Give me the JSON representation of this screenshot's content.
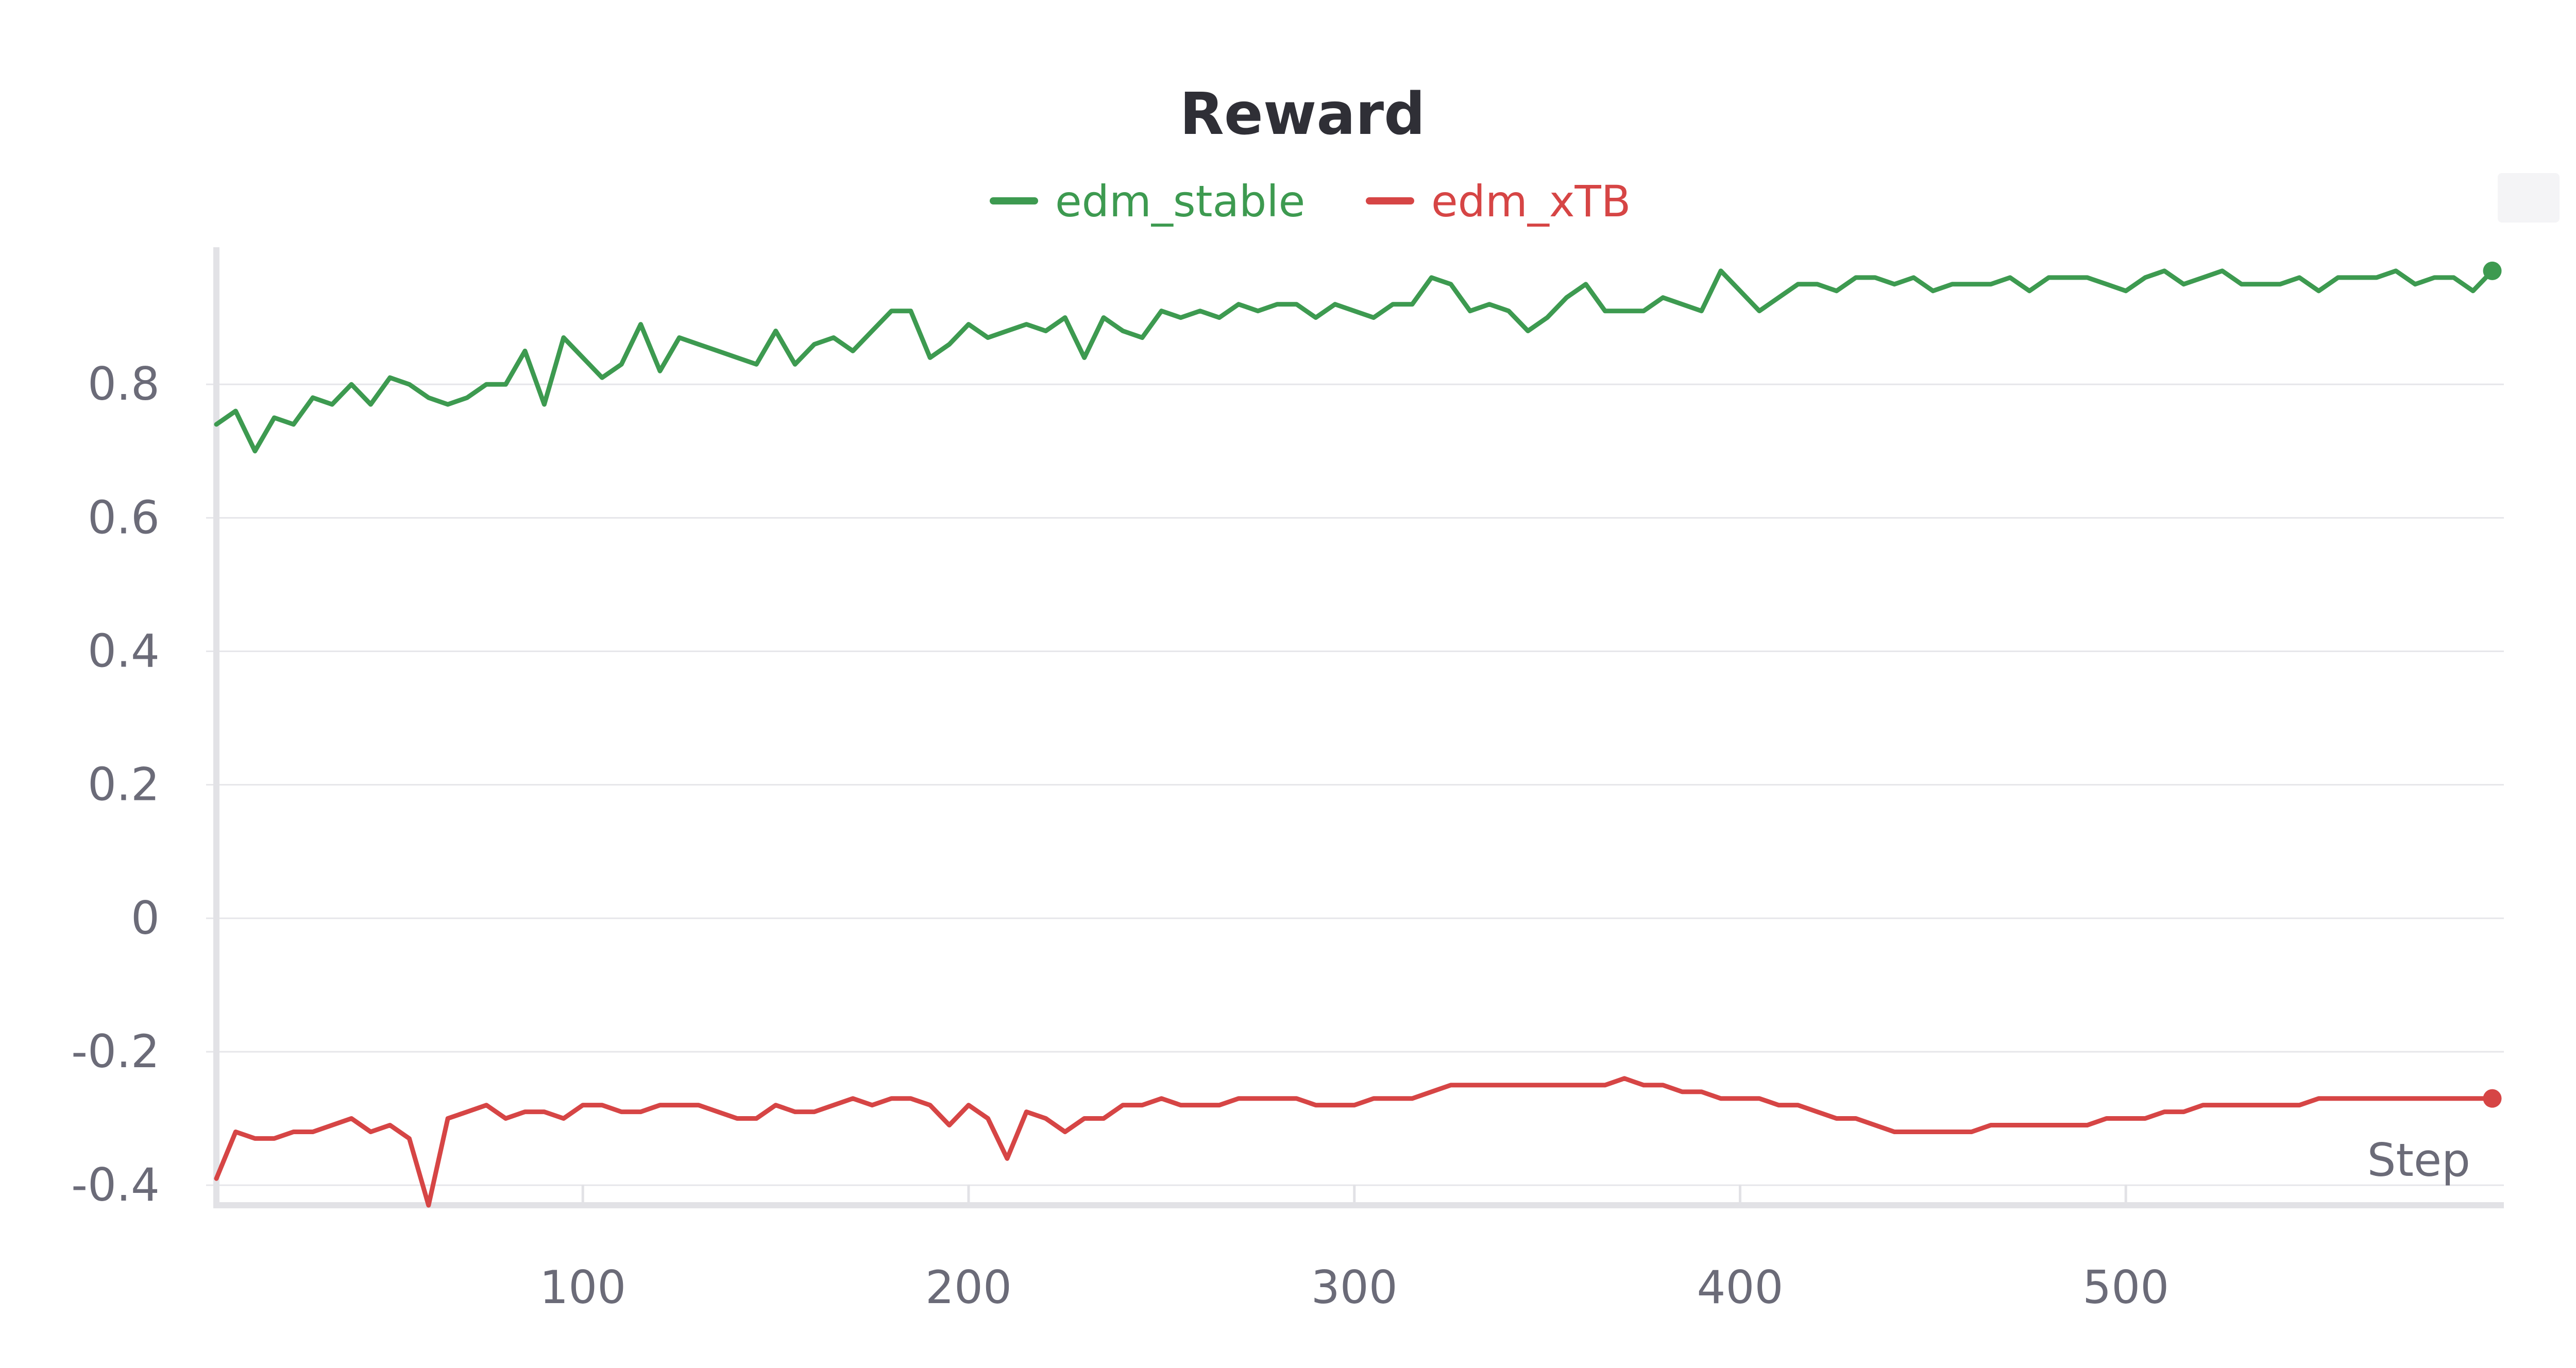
{
  "chart_data": {
    "type": "line",
    "title": "Reward",
    "xlabel": "Step",
    "ylabel": "",
    "xlim": [
      5,
      598
    ],
    "ylim": [
      -0.43,
      0.99
    ],
    "x_ticks": [
      100,
      200,
      300,
      400,
      500
    ],
    "x_tick_labels": [
      "100",
      "200",
      "300",
      "400",
      "500"
    ],
    "y_ticks": [
      0.8,
      0.6,
      0.4,
      0.2,
      0,
      -0.2,
      -0.4
    ],
    "y_tick_labels": [
      "0.8",
      "0.6",
      "0.4",
      "0.2",
      "0",
      "-0.2",
      "-0.4"
    ],
    "grid": true,
    "legend_position": "top-center",
    "x": [
      5,
      10,
      15,
      20,
      25,
      30,
      35,
      40,
      45,
      50,
      55,
      60,
      65,
      70,
      75,
      80,
      85,
      90,
      95,
      100,
      105,
      110,
      115,
      120,
      125,
      130,
      135,
      140,
      145,
      150,
      155,
      160,
      165,
      170,
      175,
      180,
      185,
      190,
      195,
      200,
      205,
      210,
      215,
      220,
      225,
      230,
      235,
      240,
      245,
      250,
      255,
      260,
      265,
      270,
      275,
      280,
      285,
      290,
      295,
      300,
      305,
      310,
      315,
      320,
      325,
      330,
      335,
      340,
      345,
      350,
      355,
      360,
      365,
      370,
      375,
      380,
      385,
      390,
      395,
      400,
      405,
      410,
      415,
      420,
      425,
      430,
      435,
      440,
      445,
      450,
      455,
      460,
      465,
      470,
      475,
      480,
      485,
      490,
      495,
      500,
      505,
      510,
      515,
      520,
      525,
      530,
      535,
      540,
      545,
      550,
      555,
      560,
      565,
      570,
      575,
      580,
      585,
      590,
      595
    ],
    "series": [
      {
        "name": "edm_stable",
        "color": "#3d9a50",
        "values": [
          0.74,
          0.76,
          0.7,
          0.75,
          0.74,
          0.78,
          0.77,
          0.8,
          0.77,
          0.81,
          0.8,
          0.78,
          0.77,
          0.78,
          0.8,
          0.8,
          0.85,
          0.77,
          0.87,
          0.84,
          0.81,
          0.83,
          0.89,
          0.82,
          0.87,
          0.86,
          0.85,
          0.84,
          0.83,
          0.88,
          0.83,
          0.86,
          0.87,
          0.85,
          0.88,
          0.91,
          0.91,
          0.84,
          0.86,
          0.89,
          0.87,
          0.88,
          0.89,
          0.88,
          0.9,
          0.84,
          0.9,
          0.88,
          0.87,
          0.91,
          0.9,
          0.91,
          0.9,
          0.92,
          0.91,
          0.92,
          0.92,
          0.9,
          0.92,
          0.91,
          0.9,
          0.92,
          0.92,
          0.96,
          0.95,
          0.91,
          0.92,
          0.91,
          0.88,
          0.9,
          0.93,
          0.95,
          0.91,
          0.91,
          0.91,
          0.93,
          0.92,
          0.91,
          0.97,
          0.94,
          0.91,
          0.93,
          0.95,
          0.95,
          0.94,
          0.96,
          0.96,
          0.95,
          0.96,
          0.94,
          0.95,
          0.95,
          0.95,
          0.96,
          0.94,
          0.96,
          0.96,
          0.96,
          0.95,
          0.94,
          0.96,
          0.97,
          0.95,
          0.96,
          0.97,
          0.95,
          0.95,
          0.95,
          0.96,
          0.94,
          0.96,
          0.96,
          0.96,
          0.97,
          0.95,
          0.96,
          0.96,
          0.94,
          0.97
        ]
      },
      {
        "name": "edm_xTB",
        "color": "#d64545",
        "values": [
          -0.39,
          -0.32,
          -0.33,
          -0.33,
          -0.32,
          -0.32,
          -0.31,
          -0.3,
          -0.32,
          -0.31,
          -0.33,
          -0.43,
          -0.3,
          -0.29,
          -0.28,
          -0.3,
          -0.29,
          -0.29,
          -0.3,
          -0.28,
          -0.28,
          -0.29,
          -0.29,
          -0.28,
          -0.28,
          -0.28,
          -0.29,
          -0.3,
          -0.3,
          -0.28,
          -0.29,
          -0.29,
          -0.28,
          -0.27,
          -0.28,
          -0.27,
          -0.27,
          -0.28,
          -0.31,
          -0.28,
          -0.3,
          -0.36,
          -0.29,
          -0.3,
          -0.32,
          -0.3,
          -0.3,
          -0.28,
          -0.28,
          -0.27,
          -0.28,
          -0.28,
          -0.28,
          -0.27,
          -0.27,
          -0.27,
          -0.27,
          -0.28,
          -0.28,
          -0.28,
          -0.27,
          -0.27,
          -0.27,
          -0.26,
          -0.25,
          -0.25,
          -0.25,
          -0.25,
          -0.25,
          -0.25,
          -0.25,
          -0.25,
          -0.25,
          -0.24,
          -0.25,
          -0.25,
          -0.26,
          -0.26,
          -0.27,
          -0.27,
          -0.27,
          -0.28,
          -0.28,
          -0.29,
          -0.3,
          -0.3,
          -0.31,
          -0.32,
          -0.32,
          -0.32,
          -0.32,
          -0.32,
          -0.31,
          -0.31,
          -0.31,
          -0.31,
          -0.31,
          -0.31,
          -0.3,
          -0.3,
          -0.3,
          -0.29,
          -0.29,
          -0.28,
          -0.28,
          -0.28,
          -0.28,
          -0.28,
          -0.28,
          -0.27,
          -0.27,
          -0.27,
          -0.27,
          -0.27,
          -0.27,
          -0.27,
          -0.27,
          -0.27,
          -0.27
        ]
      }
    ]
  }
}
